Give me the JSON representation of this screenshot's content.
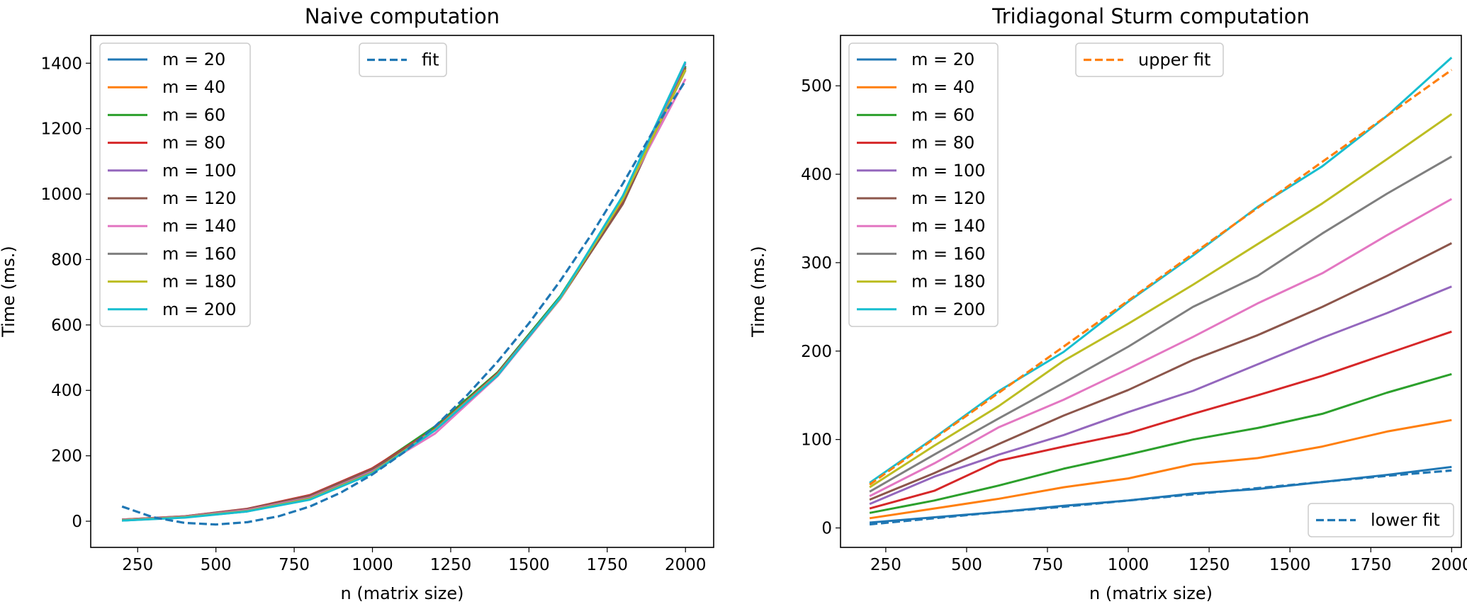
{
  "chart_data": [
    {
      "type": "line",
      "title": "Naive computation",
      "xlabel": "n (matrix size)",
      "ylabel": "Time (ms.)",
      "xlim": [
        100,
        2090
      ],
      "ylim": [
        -80,
        1485
      ],
      "xticks": [
        250,
        500,
        750,
        1000,
        1250,
        1500,
        1750,
        2000
      ],
      "yticks": [
        0,
        200,
        400,
        600,
        800,
        1000,
        1200,
        1400
      ],
      "x": [
        200,
        400,
        600,
        800,
        1000,
        1200,
        1400,
        1600,
        1800,
        2000
      ],
      "series": [
        {
          "name": "m = 20",
          "color": "#1f77b4",
          "values": [
            2,
            12,
            30,
            68,
            148,
            282,
            448,
            682,
            988,
            1392
          ]
        },
        {
          "name": "m = 40",
          "color": "#ff7f0e",
          "values": [
            3,
            13,
            33,
            73,
            155,
            284,
            451,
            684,
            981,
            1388
          ]
        },
        {
          "name": "m = 60",
          "color": "#2ca02c",
          "values": [
            4,
            14,
            35,
            76,
            160,
            290,
            455,
            688,
            985,
            1390
          ]
        },
        {
          "name": "m = 80",
          "color": "#d62728",
          "values": [
            5,
            15,
            38,
            80,
            162,
            282,
            452,
            682,
            975,
            1385
          ]
        },
        {
          "name": "m = 100",
          "color": "#9467bd",
          "values": [
            4,
            14,
            36,
            76,
            158,
            280,
            450,
            684,
            988,
            1400
          ]
        },
        {
          "name": "m = 120",
          "color": "#8c564b",
          "values": [
            5,
            15,
            37,
            78,
            160,
            278,
            448,
            680,
            970,
            1385
          ]
        },
        {
          "name": "m = 140",
          "color": "#e377c2",
          "values": [
            4,
            14,
            34,
            72,
            152,
            268,
            444,
            680,
            990,
            1352
          ]
        },
        {
          "name": "m = 160",
          "color": "#7f7f7f",
          "values": [
            3,
            13,
            32,
            70,
            150,
            278,
            446,
            682,
            985,
            1378
          ]
        },
        {
          "name": "m = 180",
          "color": "#bcbd22",
          "values": [
            3,
            12,
            31,
            68,
            148,
            280,
            448,
            682,
            985,
            1380
          ]
        },
        {
          "name": "m = 200",
          "color": "#17becf",
          "values": [
            2,
            11,
            30,
            66,
            146,
            278,
            446,
            684,
            995,
            1405
          ]
        }
      ],
      "fits": [
        {
          "name": "fit",
          "color": "#1f77b4",
          "style": "dashed",
          "x": [
            200,
            300,
            400,
            500,
            600,
            700,
            800,
            900,
            1000,
            1100,
            1200,
            1300,
            1400,
            1500,
            1600,
            1700,
            1800,
            1900,
            2000
          ],
          "values": [
            45,
            12,
            -5,
            -10,
            -3,
            15,
            45,
            88,
            143,
            210,
            290,
            383,
            488,
            605,
            735,
            877,
            1032,
            1198,
            1346
          ]
        }
      ],
      "legends": [
        {
          "position": "upper left",
          "entries": [
            "m = 20",
            "m = 40",
            "m = 60",
            "m = 80",
            "m = 100",
            "m = 120",
            "m = 140",
            "m = 160",
            "m = 180",
            "m = 200"
          ]
        },
        {
          "position": "upper center",
          "entries": [
            "fit"
          ]
        }
      ]
    },
    {
      "type": "line",
      "title": "Tridiagonal Sturm computation",
      "xlabel": "n (matrix size)",
      "ylabel": "Time (ms.)",
      "xlim": [
        110,
        2030
      ],
      "ylim": [
        -22,
        557
      ],
      "xticks": [
        250,
        500,
        750,
        1000,
        1250,
        1500,
        1750,
        2000
      ],
      "yticks": [
        0,
        100,
        200,
        300,
        400,
        500
      ],
      "x": [
        200,
        400,
        600,
        800,
        1000,
        1200,
        1400,
        1600,
        1800,
        2000
      ],
      "series": [
        {
          "name": "m = 20",
          "color": "#1f77b4",
          "values": [
            6,
            12,
            18,
            25,
            31,
            39,
            44,
            52,
            60,
            69
          ]
        },
        {
          "name": "m = 40",
          "color": "#ff7f0e",
          "values": [
            11,
            22,
            33,
            46,
            56,
            72,
            79,
            92,
            109,
            122
          ]
        },
        {
          "name": "m = 60",
          "color": "#2ca02c",
          "values": [
            17,
            31,
            48,
            67,
            83,
            100,
            113,
            129,
            153,
            174
          ]
        },
        {
          "name": "m = 80",
          "color": "#d62728",
          "values": [
            22,
            42,
            76,
            92,
            107,
            129,
            150,
            172,
            197,
            222
          ]
        },
        {
          "name": "m = 100",
          "color": "#9467bd",
          "values": [
            27,
            58,
            83,
            105,
            131,
            155,
            185,
            215,
            243,
            273
          ]
        },
        {
          "name": "m = 120",
          "color": "#8c564b",
          "values": [
            32,
            62,
            95,
            127,
            156,
            190,
            218,
            250,
            285,
            322
          ]
        },
        {
          "name": "m = 140",
          "color": "#e377c2",
          "values": [
            36,
            73,
            114,
            145,
            180,
            216,
            254,
            288,
            331,
            372
          ]
        },
        {
          "name": "m = 160",
          "color": "#7f7f7f",
          "values": [
            41,
            83,
            124,
            164,
            205,
            250,
            285,
            333,
            378,
            420
          ]
        },
        {
          "name": "m = 180",
          "color": "#bcbd22",
          "values": [
            46,
            93,
            138,
            189,
            231,
            275,
            321,
            367,
            417,
            468
          ]
        },
        {
          "name": "m = 200",
          "color": "#17becf",
          "values": [
            51,
            102,
            155,
            199,
            256,
            308,
            363,
            409,
            466,
            532
          ]
        }
      ],
      "fits": [
        {
          "name": "upper fit",
          "color": "#ff7f0e",
          "style": "dashed",
          "x": [
            200,
            400,
            600,
            800,
            1000,
            1200,
            1400,
            1600,
            1800,
            2000
          ],
          "values": [
            49,
            101,
            153,
            205,
            257,
            310,
            362,
            414,
            466,
            518
          ]
        },
        {
          "name": "lower fit",
          "color": "#1f77b4",
          "style": "dashed",
          "x": [
            200,
            400,
            600,
            800,
            1000,
            1200,
            1400,
            1600,
            1800,
            2000
          ],
          "values": [
            4,
            11,
            18,
            24,
            31,
            38,
            45,
            52,
            59,
            65
          ]
        }
      ],
      "legends": [
        {
          "position": "upper left",
          "entries": [
            "m = 20",
            "m = 40",
            "m = 60",
            "m = 80",
            "m = 100",
            "m = 120",
            "m = 140",
            "m = 160",
            "m = 180",
            "m = 200"
          ]
        },
        {
          "position": "upper center",
          "entries": [
            "upper fit"
          ]
        },
        {
          "position": "lower right",
          "entries": [
            "lower fit"
          ]
        }
      ]
    }
  ]
}
